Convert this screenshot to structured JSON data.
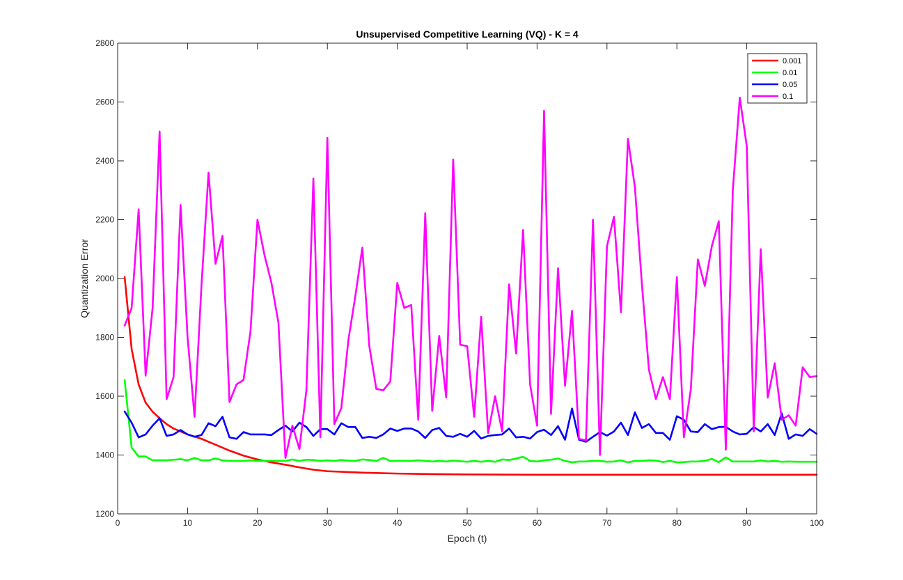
{
  "chart_data": {
    "type": "line",
    "title": "Unsupervised Competitive Learning (VQ) - K = 4",
    "xlabel": "Epoch (t)",
    "ylabel": "Quantization Error",
    "xlim": [
      0,
      100
    ],
    "ylim": [
      1200,
      2800
    ],
    "xticks": [
      0,
      10,
      20,
      30,
      40,
      50,
      60,
      70,
      80,
      90,
      100
    ],
    "yticks": [
      1200,
      1400,
      1600,
      1800,
      2000,
      2200,
      2400,
      2600,
      2800
    ],
    "grid": false,
    "legend_position": "top-right",
    "series": [
      {
        "name": "0.001",
        "color": "#ff0000",
        "x": [
          1,
          2,
          3,
          4,
          5,
          6,
          7,
          8,
          9,
          10,
          12,
          14,
          16,
          18,
          20,
          22,
          24,
          26,
          28,
          30,
          35,
          40,
          45,
          50,
          60,
          70,
          80,
          90,
          100
        ],
        "y": [
          2005,
          1760,
          1640,
          1578,
          1547,
          1525,
          1505,
          1490,
          1480,
          1470,
          1455,
          1435,
          1415,
          1398,
          1385,
          1375,
          1367,
          1358,
          1350,
          1345,
          1340,
          1337,
          1335,
          1334,
          1333,
          1333,
          1333,
          1333,
          1333
        ]
      },
      {
        "name": "0.01",
        "color": "#00ff00",
        "x": [
          1,
          2,
          3,
          4,
          5,
          6,
          7,
          8,
          9,
          10,
          11,
          12,
          13,
          14,
          15,
          16,
          17,
          18,
          19,
          20,
          21,
          22,
          23,
          24,
          25,
          26,
          27,
          28,
          29,
          30,
          31,
          32,
          33,
          34,
          35,
          36,
          37,
          38,
          39,
          40,
          41,
          42,
          43,
          44,
          45,
          46,
          47,
          48,
          49,
          50,
          51,
          52,
          53,
          54,
          55,
          56,
          57,
          58,
          59,
          60,
          61,
          62,
          63,
          64,
          65,
          66,
          67,
          68,
          69,
          70,
          71,
          72,
          73,
          74,
          75,
          76,
          77,
          78,
          79,
          80,
          81,
          82,
          83,
          84,
          85,
          86,
          87,
          88,
          89,
          90,
          91,
          92,
          93,
          94,
          95,
          96,
          97,
          98,
          99,
          100
        ],
        "y": [
          1655,
          1425,
          1395,
          1395,
          1382,
          1382,
          1382,
          1384,
          1386,
          1382,
          1390,
          1382,
          1382,
          1388,
          1382,
          1380,
          1380,
          1380,
          1382,
          1380,
          1380,
          1380,
          1380,
          1380,
          1385,
          1380,
          1384,
          1383,
          1380,
          1382,
          1380,
          1383,
          1381,
          1380,
          1385,
          1383,
          1380,
          1390,
          1380,
          1380,
          1380,
          1380,
          1382,
          1380,
          1378,
          1380,
          1378,
          1381,
          1379,
          1377,
          1380,
          1377,
          1380,
          1377,
          1385,
          1383,
          1388,
          1394,
          1380,
          1378,
          1382,
          1384,
          1388,
          1380,
          1375,
          1378,
          1378,
          1380,
          1380,
          1377,
          1378,
          1382,
          1375,
          1380,
          1380,
          1382,
          1381,
          1376,
          1380,
          1375,
          1376,
          1378,
          1378,
          1380,
          1387,
          1376,
          1392,
          1378,
          1378,
          1378,
          1378,
          1382,
          1378,
          1380,
          1377,
          1378,
          1377,
          1377,
          1377,
          1377
        ]
      },
      {
        "name": "0.05",
        "color": "#0000ff",
        "x": [
          1,
          2,
          3,
          4,
          5,
          6,
          7,
          8,
          9,
          10,
          11,
          12,
          13,
          14,
          15,
          16,
          17,
          18,
          19,
          20,
          21,
          22,
          23,
          24,
          25,
          26,
          27,
          28,
          29,
          30,
          31,
          32,
          33,
          34,
          35,
          36,
          37,
          38,
          39,
          40,
          41,
          42,
          43,
          44,
          45,
          46,
          47,
          48,
          49,
          50,
          51,
          52,
          53,
          54,
          55,
          56,
          57,
          58,
          59,
          60,
          61,
          62,
          63,
          64,
          65,
          66,
          67,
          68,
          69,
          70,
          71,
          72,
          73,
          74,
          75,
          76,
          77,
          78,
          79,
          80,
          81,
          82,
          83,
          84,
          85,
          86,
          87,
          88,
          89,
          90,
          91,
          92,
          93,
          94,
          95,
          96,
          97,
          98,
          99,
          100
        ],
        "y": [
          1548,
          1510,
          1460,
          1470,
          1500,
          1525,
          1465,
          1470,
          1485,
          1470,
          1462,
          1468,
          1508,
          1498,
          1530,
          1460,
          1455,
          1478,
          1470,
          1470,
          1470,
          1468,
          1485,
          1500,
          1480,
          1510,
          1495,
          1465,
          1488,
          1488,
          1470,
          1508,
          1495,
          1495,
          1458,
          1462,
          1458,
          1470,
          1490,
          1482,
          1490,
          1490,
          1480,
          1458,
          1485,
          1492,
          1465,
          1462,
          1472,
          1462,
          1482,
          1456,
          1465,
          1468,
          1470,
          1490,
          1460,
          1462,
          1456,
          1478,
          1486,
          1468,
          1498,
          1452,
          1558,
          1452,
          1445,
          1462,
          1478,
          1466,
          1480,
          1510,
          1468,
          1545,
          1492,
          1505,
          1475,
          1475,
          1452,
          1532,
          1520,
          1480,
          1478,
          1505,
          1488,
          1495,
          1496,
          1480,
          1470,
          1472,
          1495,
          1480,
          1505,
          1468,
          1542,
          1455,
          1470,
          1465,
          1488,
          1472
        ]
      },
      {
        "name": "0.1",
        "color": "#ff00ff",
        "x": [
          1,
          2,
          3,
          4,
          5,
          6,
          7,
          8,
          9,
          10,
          11,
          12,
          13,
          14,
          15,
          16,
          17,
          18,
          19,
          20,
          21,
          22,
          23,
          24,
          25,
          26,
          27,
          28,
          29,
          30,
          31,
          32,
          33,
          34,
          35,
          36,
          37,
          38,
          39,
          40,
          41,
          42,
          43,
          44,
          45,
          46,
          47,
          48,
          49,
          50,
          51,
          52,
          53,
          54,
          55,
          56,
          57,
          58,
          59,
          60,
          61,
          62,
          63,
          64,
          65,
          66,
          67,
          68,
          69,
          70,
          71,
          72,
          73,
          74,
          75,
          76,
          77,
          78,
          79,
          80,
          81,
          82,
          83,
          84,
          85,
          86,
          87,
          88,
          89,
          90,
          91,
          92,
          93,
          94,
          95,
          96,
          97,
          98,
          99,
          100
        ],
        "y": [
          1840,
          1900,
          2235,
          1670,
          1900,
          2500,
          1590,
          1665,
          2250,
          1800,
          1530,
          1980,
          2360,
          2050,
          2145,
          1580,
          1640,
          1655,
          1820,
          2200,
          2080,
          1985,
          1850,
          1390,
          1500,
          1420,
          1620,
          2340,
          1460,
          2478,
          1505,
          1560,
          1790,
          1940,
          2105,
          1770,
          1625,
          1620,
          1650,
          1985,
          1900,
          1910,
          1520,
          2222,
          1550,
          1805,
          1595,
          2405,
          1775,
          1770,
          1530,
          1870,
          1475,
          1600,
          1480,
          1980,
          1745,
          2165,
          1640,
          1500,
          2570,
          1540,
          2035,
          1635,
          1890,
          1455,
          1450,
          2200,
          1400,
          2110,
          2210,
          1885,
          2475,
          2310,
          1980,
          1690,
          1590,
          1665,
          1590,
          2005,
          1460,
          1625,
          2065,
          1975,
          2110,
          2195,
          1418,
          2300,
          2615,
          2450,
          1480,
          2100,
          1595,
          1712,
          1520,
          1535,
          1500,
          1698,
          1665,
          1668
        ]
      }
    ]
  }
}
